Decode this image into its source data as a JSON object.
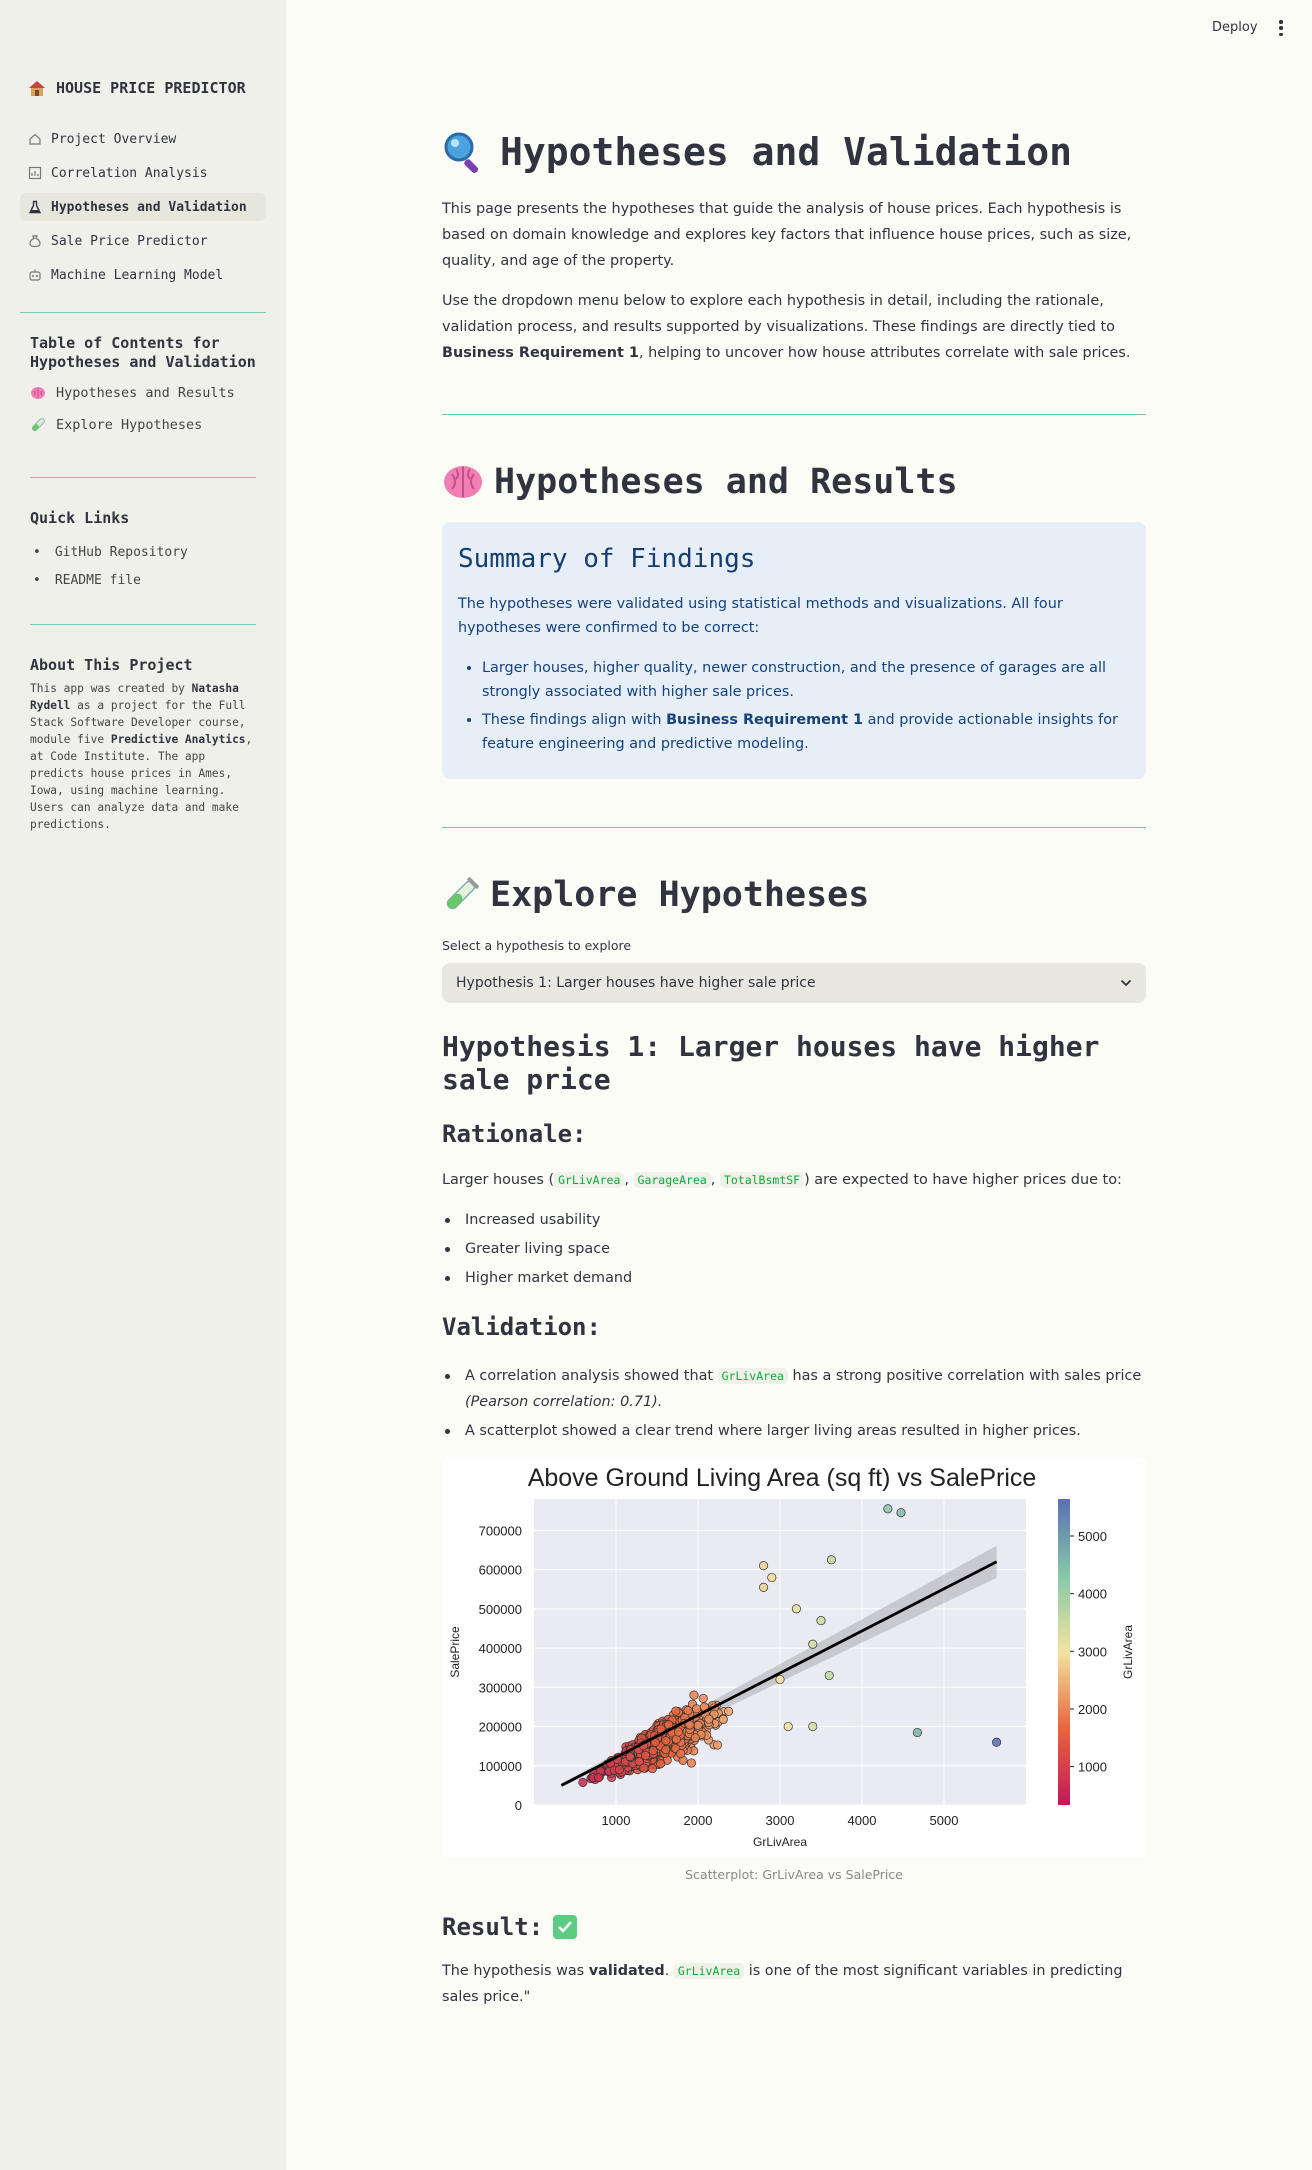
{
  "header": {
    "deploy_label": "Deploy"
  },
  "sidebar": {
    "app_title": "HOUSE PRICE PREDICTOR",
    "nav": [
      {
        "label": "Project Overview",
        "icon": "home-icon"
      },
      {
        "label": "Correlation Analysis",
        "icon": "chart-icon"
      },
      {
        "label": "Hypotheses and Validation",
        "icon": "flask-icon",
        "active": true
      },
      {
        "label": "Sale Price Predictor",
        "icon": "moneybag-icon"
      },
      {
        "label": "Machine Learning Model",
        "icon": "robot-icon"
      }
    ],
    "toc_title": "Table of Contents for Hypotheses and Validation",
    "toc": [
      "Hypotheses and Results",
      "Explore Hypotheses"
    ],
    "quick_links_title": "Quick Links",
    "quick_links": [
      "GitHub Repository",
      "README file"
    ],
    "about_title": "About This Project",
    "about_text": {
      "t1": "This app was created by ",
      "author": "Natasha Rydell",
      "t2": " as a project for the Full Stack Software Developer course, module five ",
      "module": "Predictive Analytics",
      "t3": ", at Code Institute. The app predicts house prices in Ames, Iowa, using machine learning. Users can analyze data and make predictions."
    }
  },
  "main": {
    "title": "Hypotheses and Validation",
    "intro_1": "This page presents the hypotheses that guide the analysis of house prices. Each hypothesis is based on domain knowledge and explores key factors that influence house prices, such as size, quality, and age of the property.",
    "intro_2a": "Use the dropdown menu below to explore each hypothesis in detail, including the rationale, validation process, and results supported by visualizations. These findings are directly tied to ",
    "intro_2b": "Business Requirement 1",
    "intro_2c": ", helping to uncover how house attributes correlate with sale prices.",
    "section_results": "Hypotheses and Results",
    "summary": {
      "title": "Summary of Findings",
      "text": "The hypotheses were validated using statistical methods and visualizations. All four hypotheses were confirmed to be correct:",
      "bullet_1": "Larger houses, higher quality, newer construction, and the presence of garages are all strongly associated with higher sale prices.",
      "bullet_2a": "These findings align with ",
      "bullet_2b": "Business Requirement 1",
      "bullet_2c": " and provide actionable insights for feature engineering and predictive modeling."
    },
    "section_explore": "Explore Hypotheses",
    "select_label": "Select a hypothesis to explore",
    "select_value": "Hypothesis 1: Larger houses have higher sale price",
    "hypothesis_title": "Hypothesis 1: Larger houses have higher sale price",
    "rationale_title": "Rationale:",
    "rationale_a": "Larger houses (",
    "rationale_codes": [
      "GrLivArea",
      "GarageArea",
      "TotalBsmtSF"
    ],
    "rationale_b": ") are expected to have higher prices due to:",
    "rationale_items": [
      "Increased usability",
      "Greater living space",
      "Higher market demand"
    ],
    "validation_title": "Validation:",
    "validation_1a": "A correlation analysis showed that ",
    "validation_1_code": "GrLivArea",
    "validation_1b": " has a strong positive correlation with sales price",
    "validation_1c": "(Pearson correlation: 0.71).",
    "validation_2": "A scatterplot showed a clear trend where larger living areas resulted in higher prices.",
    "caption": "Scatterplot: GrLivArea vs SalePrice",
    "result_title": "Result:",
    "result_a": "The hypothesis was ",
    "result_b": "validated",
    "result_c": ". ",
    "result_code": "GrLivArea",
    "result_d": " is one of the most significant variables in predicting sales price.\""
  },
  "chart_data": {
    "type": "scatter",
    "title": "Above Ground Living Area (sq ft) vs SalePrice",
    "xlabel": "GrLivArea",
    "ylabel": "SalePrice",
    "colorbar_label": "GrLivArea",
    "xlim": [
      0,
      6000
    ],
    "ylim": [
      0,
      780000
    ],
    "x_ticks": [
      1000,
      2000,
      3000,
      4000,
      5000
    ],
    "y_ticks": [
      0,
      100000,
      200000,
      300000,
      400000,
      500000,
      600000,
      700000
    ],
    "colorbar_ticks": [
      1000,
      2000,
      3000,
      4000,
      5000
    ],
    "colorbar_range": [
      334,
      5642
    ],
    "regression_line": [
      [
        334,
        50000
      ],
      [
        5642,
        620000
      ]
    ],
    "outliers": [
      [
        4316,
        755000
      ],
      [
        4476,
        745000
      ],
      [
        4676,
        184750
      ],
      [
        5642,
        160000
      ],
      [
        2800,
        610000
      ],
      [
        3627,
        625000
      ],
      [
        2800,
        555000
      ],
      [
        2900,
        580000
      ],
      [
        3200,
        500000
      ],
      [
        3500,
        470000
      ],
      [
        3400,
        410000
      ],
      [
        3000,
        320000
      ],
      [
        3600,
        330000
      ],
      [
        3400,
        200000
      ],
      [
        3100,
        200000
      ]
    ],
    "grid": true
  }
}
